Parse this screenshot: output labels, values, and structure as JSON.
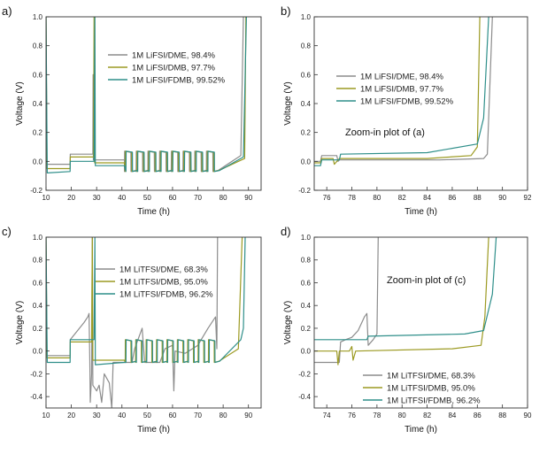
{
  "colors": {
    "dme": "#8c8c8c",
    "dmb": "#9c9a22",
    "fdmb": "#2f8f8a"
  },
  "chart_data": [
    {
      "panel": "a)",
      "type": "line",
      "xlabel": "Time (h)",
      "ylabel": "Voltage (V)",
      "xlim": [
        10,
        95
      ],
      "ylim": [
        -0.2,
        1.0
      ],
      "xticks": [
        10,
        20,
        30,
        40,
        50,
        60,
        70,
        80,
        90
      ],
      "yticks": [
        -0.2,
        0.0,
        0.2,
        0.4,
        0.6,
        0.8,
        1.0
      ],
      "legend_position": "upper-middle",
      "series": [
        {
          "name": "1M LiFSI/DME, 98.4%",
          "key": "dme",
          "points": [
            [
              10,
              1.0
            ],
            [
              10.3,
              -0.02
            ],
            [
              19.5,
              -0.02
            ],
            [
              19.6,
              0.05
            ],
            [
              28.5,
              0.05
            ],
            [
              28.6,
              0.6
            ],
            [
              28.7,
              0.01
            ],
            [
              41,
              0.01
            ],
            [
              41.1,
              0.04
            ],
            [
              87,
              0.04
            ],
            [
              88,
              1.0
            ]
          ]
        },
        {
          "name": "1M LiFSI/DMB, 97.7%",
          "key": "dmb",
          "points": [
            [
              10,
              1.0
            ],
            [
              10.4,
              -0.05
            ],
            [
              19.5,
              -0.05
            ],
            [
              19.6,
              0.03
            ],
            [
              28.8,
              0.03
            ],
            [
              29,
              1.0
            ],
            [
              29.2,
              -0.01
            ],
            [
              41,
              -0.01
            ],
            [
              41.1,
              0.02
            ],
            [
              88.5,
              0.02
            ],
            [
              89,
              1.0
            ]
          ]
        },
        {
          "name": "1M LiFSI/FDMB, 99.52%",
          "key": "fdmb",
          "points": [
            [
              10,
              1.0
            ],
            [
              10.5,
              -0.08
            ],
            [
              19.5,
              -0.07
            ],
            [
              19.6,
              0.0
            ],
            [
              29,
              0.0
            ],
            [
              29.3,
              1.0
            ],
            [
              29.5,
              -0.03
            ],
            [
              41,
              -0.03
            ],
            [
              41.1,
              0.01
            ],
            [
              88,
              0.03
            ],
            [
              89.2,
              1.0
            ]
          ]
        }
      ],
      "cycling": {
        "start": 41,
        "end": 78,
        "n": 8,
        "high": 0.07,
        "low": -0.07
      }
    },
    {
      "panel": "b)",
      "type": "line",
      "xlabel": "Time (h)",
      "ylabel": "Voltage (V)",
      "xlim": [
        75,
        92
      ],
      "ylim": [
        -0.2,
        1.0
      ],
      "xticks": [
        76,
        78,
        80,
        82,
        84,
        86,
        88,
        90,
        92
      ],
      "yticks": [
        -0.2,
        0.0,
        0.2,
        0.4,
        0.6,
        0.8,
        1.0
      ],
      "annotation": "Zoom-in plot of (a)",
      "series": [
        {
          "name": "1M LiFSI/DME, 98.4%",
          "key": "dme",
          "points": [
            [
              75,
              0.0
            ],
            [
              75.5,
              0.0
            ],
            [
              75.6,
              0.04
            ],
            [
              76.8,
              0.04
            ],
            [
              76.9,
              0.0
            ],
            [
              77,
              0.01
            ],
            [
              85,
              0.01
            ],
            [
              88.5,
              0.02
            ],
            [
              88.8,
              0.05
            ],
            [
              89.2,
              1.0
            ]
          ]
        },
        {
          "name": "1M LiFSI/DMB, 97.7%",
          "key": "dmb",
          "points": [
            [
              75,
              -0.01
            ],
            [
              75.5,
              -0.01
            ],
            [
              75.6,
              0.02
            ],
            [
              76.5,
              0.02
            ],
            [
              76.6,
              -0.02
            ],
            [
              77,
              0.02
            ],
            [
              84,
              0.02
            ],
            [
              87.5,
              0.04
            ],
            [
              88,
              0.1
            ],
            [
              88.2,
              1.0
            ]
          ]
        },
        {
          "name": "1M LiFSI/FDMB, 99.52%",
          "key": "fdmb",
          "points": [
            [
              75,
              -0.03
            ],
            [
              75.5,
              -0.03
            ],
            [
              75.6,
              0.01
            ],
            [
              77,
              0.01
            ],
            [
              77.1,
              0.05
            ],
            [
              84,
              0.06
            ],
            [
              88,
              0.12
            ],
            [
              88.5,
              0.3
            ],
            [
              88.9,
              1.0
            ]
          ]
        }
      ]
    },
    {
      "panel": "c)",
      "type": "line",
      "xlabel": "Time (h)",
      "ylabel": "Voltage (V)",
      "xlim": [
        10,
        95
      ],
      "ylim": [
        -0.5,
        1.0
      ],
      "xticks": [
        10,
        20,
        30,
        40,
        50,
        60,
        70,
        80,
        90
      ],
      "yticks": [
        -0.4,
        -0.2,
        0.0,
        0.2,
        0.4,
        0.6,
        0.8,
        1.0
      ],
      "series": [
        {
          "name": "1M LiTFSI/DME, 68.3%",
          "key": "dme",
          "points": [
            [
              10,
              1.0
            ],
            [
              10.3,
              -0.04
            ],
            [
              19.5,
              -0.04
            ],
            [
              19.6,
              0.1
            ],
            [
              25,
              0.25
            ],
            [
              26.5,
              0.3
            ],
            [
              27,
              0.33
            ],
            [
              27.3,
              -0.1
            ],
            [
              27.5,
              -0.45
            ],
            [
              28,
              -0.2
            ],
            [
              28.3,
              1.0
            ],
            [
              28.5,
              -0.3
            ],
            [
              30,
              -0.35
            ],
            [
              31,
              -0.3
            ],
            [
              32,
              -0.45
            ],
            [
              33,
              -0.2
            ],
            [
              35,
              -0.28
            ],
            [
              36,
              -0.5
            ],
            [
              36.5,
              -0.1
            ],
            [
              44,
              -0.1
            ],
            [
              45,
              0.02
            ],
            [
              48,
              0.2
            ],
            [
              49,
              -0.1
            ],
            [
              55,
              -0.1
            ],
            [
              57,
              0.02
            ],
            [
              60,
              0.05
            ],
            [
              60.5,
              -0.35
            ],
            [
              61,
              0.0
            ],
            [
              65,
              -0.02
            ],
            [
              70,
              0.05
            ],
            [
              74,
              0.2
            ],
            [
              77,
              0.3
            ],
            [
              77.5,
              0.02
            ],
            [
              77.8,
              1.0
            ]
          ]
        },
        {
          "name": "1M LiTFSI/DMB, 95.0%",
          "key": "dmb",
          "points": [
            [
              10,
              1.0
            ],
            [
              10.4,
              -0.06
            ],
            [
              19.5,
              -0.06
            ],
            [
              19.6,
              0.08
            ],
            [
              28,
              0.08
            ],
            [
              28.3,
              1.0
            ],
            [
              28.5,
              -0.08
            ],
            [
              41,
              -0.08
            ],
            [
              86,
              0.02
            ],
            [
              87.5,
              1.0
            ]
          ]
        },
        {
          "name": "1M LiTFSI/FDMB, 96.2%",
          "key": "fdmb",
          "points": [
            [
              10,
              1.0
            ],
            [
              10.5,
              -0.1
            ],
            [
              19.5,
              -0.1
            ],
            [
              19.6,
              0.1
            ],
            [
              29,
              0.1
            ],
            [
              29.3,
              1.0
            ],
            [
              29.5,
              -0.12
            ],
            [
              41,
              -0.1
            ],
            [
              87,
              0.1
            ],
            [
              88,
              0.2
            ],
            [
              88.7,
              1.0
            ]
          ]
        }
      ],
      "cycling": {
        "start": 41,
        "end": 78,
        "n": 9,
        "high": 0.1,
        "low": -0.1
      }
    },
    {
      "panel": "d)",
      "type": "line",
      "xlabel": "Time (h)",
      "ylabel": "Voltage (V)",
      "xlim": [
        73,
        90
      ],
      "ylim": [
        -0.5,
        1.0
      ],
      "xticks": [
        74,
        76,
        78,
        80,
        82,
        84,
        86,
        88,
        90
      ],
      "yticks": [
        -0.4,
        -0.2,
        0.0,
        0.2,
        0.4,
        0.6,
        0.8,
        1.0
      ],
      "annotation": "Zoom-in plot of (c)",
      "series": [
        {
          "name": "1M LiTFSI/DME, 68.3%",
          "key": "dme",
          "points": [
            [
              73,
              -0.1
            ],
            [
              75,
              -0.1
            ],
            [
              75.1,
              0.08
            ],
            [
              75.5,
              0.1
            ],
            [
              76,
              0.12
            ],
            [
              76.5,
              0.18
            ],
            [
              77,
              0.3
            ],
            [
              77.2,
              0.33
            ],
            [
              77.3,
              0.05
            ],
            [
              77.7,
              0.1
            ],
            [
              78,
              0.15
            ],
            [
              78.1,
              1.0
            ]
          ]
        },
        {
          "name": "1M LiTFSI/DMB, 95.0%",
          "key": "dmb",
          "points": [
            [
              73,
              0.0
            ],
            [
              74.8,
              0.0
            ],
            [
              74.9,
              -0.12
            ],
            [
              75,
              0.0
            ],
            [
              75.8,
              0.0
            ],
            [
              76,
              0.04
            ],
            [
              76.1,
              -0.08
            ],
            [
              76.3,
              0.0
            ],
            [
              84,
              0.02
            ],
            [
              86.3,
              0.05
            ],
            [
              86.6,
              0.3
            ],
            [
              86.9,
              1.0
            ]
          ]
        },
        {
          "name": "1M LiTFSI/FDMB, 96.2%",
          "key": "fdmb",
          "points": [
            [
              73,
              0.1
            ],
            [
              77.2,
              0.1
            ],
            [
              77.3,
              0.13
            ],
            [
              85,
              0.15
            ],
            [
              86.5,
              0.18
            ],
            [
              87.2,
              0.5
            ],
            [
              87.5,
              1.0
            ]
          ]
        }
      ]
    }
  ]
}
